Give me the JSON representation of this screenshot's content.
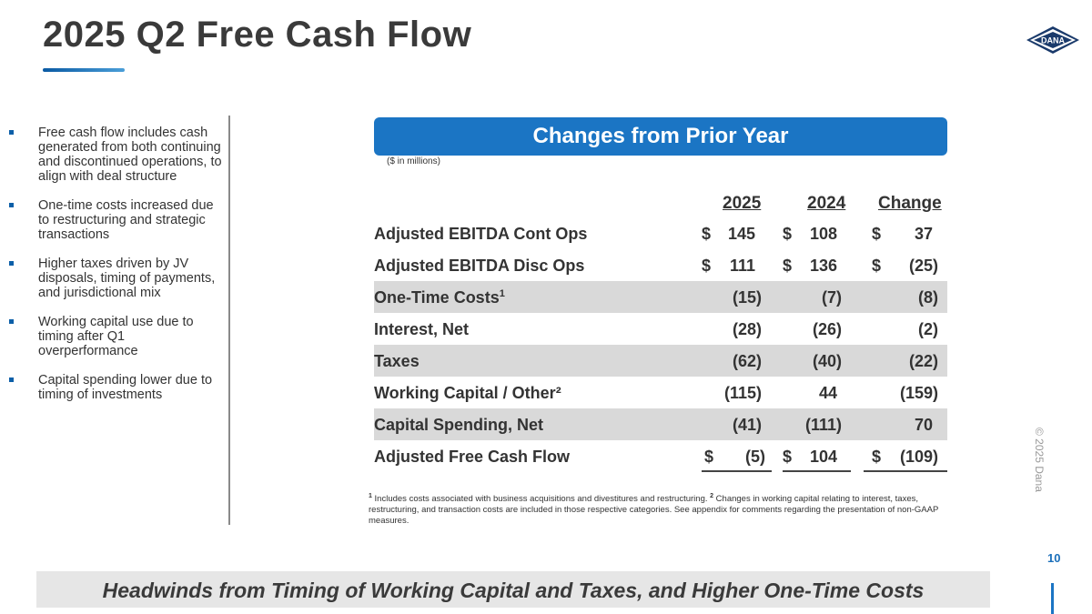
{
  "title": "2025 Q2 Free Cash Flow",
  "logo_text": "DANA",
  "bullets": [
    "Free cash flow includes cash generated from both continuing and discontinued operations, to align with deal structure",
    "One-time costs increased due to restructuring and strategic transactions",
    "Higher taxes driven by JV disposals, timing of payments, and jurisdictional mix",
    "Working capital use due to timing after Q1 overperformance",
    "Capital spending lower due to timing of investments"
  ],
  "banner": "Changes from Prior Year",
  "units": "($ in millions)",
  "columns": {
    "c1": "2025",
    "c2": "2024",
    "c3": "Change"
  },
  "rows": [
    {
      "label": "Adjusted EBITDA Cont Ops",
      "sup": "",
      "cur1": "$",
      "v1": "145",
      "cur2": "$",
      "v2": "108",
      "cur3": "$",
      "v3": "37"
    },
    {
      "label": "Adjusted EBITDA Disc Ops",
      "sup": "",
      "cur1": "$",
      "v1": "111",
      "cur2": "$",
      "v2": "136",
      "cur3": "$",
      "v3": "(25)"
    },
    {
      "label": "One-Time Costs",
      "sup": "1",
      "cur1": "",
      "v1": "(15)",
      "cur2": "",
      "v2": "(7)",
      "cur3": "",
      "v3": "(8)"
    },
    {
      "label": "Interest, Net",
      "sup": "",
      "cur1": "",
      "v1": "(28)",
      "cur2": "",
      "v2": "(26)",
      "cur3": "",
      "v3": "(2)"
    },
    {
      "label": "Taxes",
      "sup": "",
      "cur1": "",
      "v1": "(62)",
      "cur2": "",
      "v2": "(40)",
      "cur3": "",
      "v3": "(22)"
    },
    {
      "label": "Working Capital / Other²",
      "sup": "",
      "cur1": "",
      "v1": "(115)",
      "cur2": "",
      "v2": "44",
      "cur3": "",
      "v3": "(159)"
    },
    {
      "label": "Capital Spending, Net",
      "sup": "",
      "cur1": "",
      "v1": "(41)",
      "cur2": "",
      "v2": "(111)",
      "cur3": "",
      "v3": "70"
    },
    {
      "label": "Adjusted Free Cash Flow",
      "sup": "",
      "cur1": "$",
      "v1": "(5)",
      "cur2": "$",
      "v2": "104",
      "cur3": "$",
      "v3": "(109)"
    }
  ],
  "footnote": {
    "sup1": "1",
    "text1": " Includes costs associated with business acquisitions and divestitures and restructuring. ",
    "sup2": "2",
    "text2": " Changes in working capital relating to interest, taxes, restructuring, and transaction costs are included in those respective categories.  See appendix for comments regarding the presentation of non-GAAP measures."
  },
  "side_text": "© 2025 Dana",
  "page_number": "10",
  "bottom_banner": "Headwinds from Timing of Working Capital and Taxes, and Higher One-Time Costs"
}
